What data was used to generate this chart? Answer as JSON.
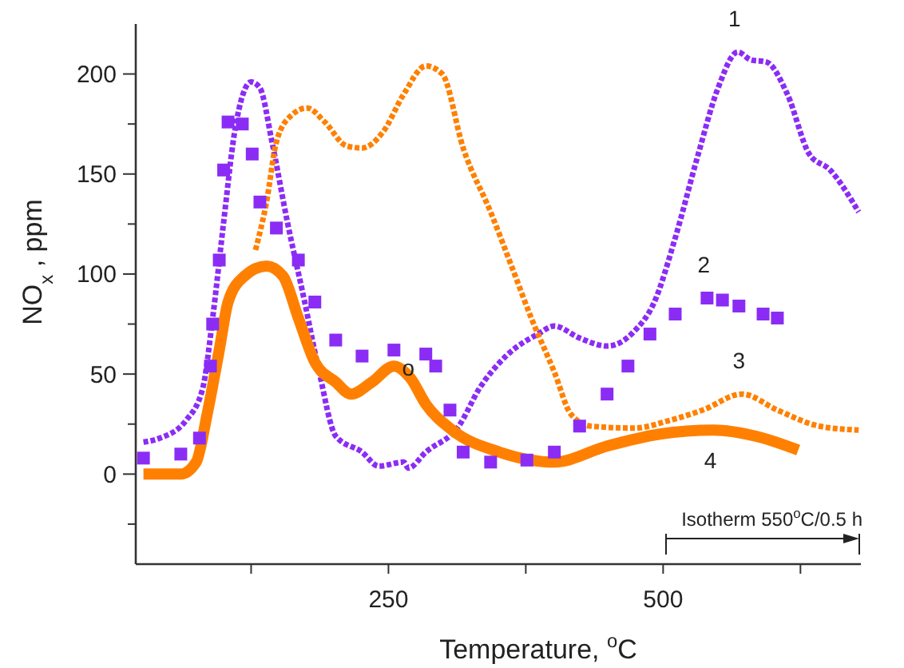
{
  "chart_data": {
    "type": "line",
    "xlabel": "Temperature, $^{o}$C",
    "ylabel": "NO$_{x}$ , ppm",
    "xlim": [
      20,
      680
    ],
    "xticks": [
      {
        "value": 125,
        "label": null
      },
      250,
      {
        "value": 375,
        "label": null
      },
      500,
      {
        "value": 625,
        "label": null
      }
    ],
    "ylim": [
      -45,
      225
    ],
    "yticks": [
      {
        "value": -25,
        "label": null
      },
      0,
      {
        "value": 25,
        "label": null
      },
      50,
      {
        "value": 75,
        "label": null
      },
      100,
      {
        "value": 125,
        "label": null
      },
      150,
      {
        "value": 175,
        "label": null
      },
      200
    ],
    "grid": false,
    "legend": false,
    "series": [
      {
        "name": "1",
        "type": "line",
        "line_style": "dotted",
        "color": "#8b2cf5",
        "x": [
          27,
          42,
          66,
          81,
          90,
          100,
          110,
          125,
          133,
          144,
          158,
          173,
          187,
          202,
          226,
          241,
          264,
          268,
          284,
          314,
          333,
          357,
          386,
          401,
          424,
          449,
          473,
          492,
          511,
          531,
          550,
          568,
          580,
          594,
          613,
          633,
          652,
          678
        ],
        "values": [
          16,
          18,
          27,
          43,
          78,
          126,
          171,
          196,
          193,
          166,
          126,
          88,
          51,
          19,
          11,
          4,
          6,
          3,
          11,
          24,
          43,
          59,
          70,
          74,
          68,
          64,
          71,
          86,
          118,
          158,
          193,
          211,
          207,
          206,
          190,
          160,
          152,
          131
        ]
      },
      {
        "name": "2",
        "type": "scatter",
        "marker": "square",
        "color": "#8b2cf5",
        "x": [
          27,
          61,
          78,
          88,
          90,
          96,
          100,
          104,
          117,
          126,
          133,
          148,
          168,
          183,
          202,
          226,
          255,
          284,
          293,
          306,
          318,
          343,
          376,
          401,
          424,
          449,
          468,
          488,
          511,
          540,
          554,
          569,
          591,
          604
        ],
        "values": [
          8,
          10,
          18,
          54,
          75,
          107,
          152,
          176,
          175,
          160,
          136,
          123,
          107,
          86,
          67,
          59,
          62,
          60,
          54,
          32,
          11,
          6,
          7,
          11,
          24,
          40,
          54,
          70,
          80,
          88,
          87,
          84,
          80,
          78
        ]
      },
      {
        "name": "3",
        "type": "line",
        "line_style": "dotted",
        "color": "#ff8000",
        "x": [
          129,
          139,
          148,
          161,
          176,
          192,
          212,
          226,
          245,
          264,
          284,
          299,
          318,
          343,
          362,
          380,
          401,
          416,
          434,
          473,
          507,
          536,
          572,
          604,
          642,
          678
        ],
        "values": [
          112,
          136,
          166,
          179,
          183,
          176,
          164,
          163,
          171,
          190,
          204,
          200,
          163,
          131,
          104,
          78,
          51,
          30,
          24,
          23,
          27,
          32,
          40,
          32,
          24,
          22
        ]
      },
      {
        "name": "4",
        "line_style": "solid",
        "color": "#ff8000",
        "x": [
          27,
          61,
          75,
          85,
          96,
          104,
          119,
          139,
          154,
          168,
          183,
          202,
          216,
          235,
          255,
          270,
          284,
          308,
          351,
          401,
          449,
          497,
          546,
          584,
          623
        ],
        "values": [
          0,
          0,
          6,
          30,
          62,
          86,
          99,
          104,
          99,
          78,
          56,
          46,
          40,
          46,
          54,
          48,
          35,
          22,
          11,
          6,
          14,
          20,
          22,
          19,
          12
        ]
      }
    ],
    "annotations": [
      {
        "text": "o",
        "x": 268,
        "y": 53
      },
      "Isotherm 550$^{o}$C/0.5 h"
    ]
  }
}
